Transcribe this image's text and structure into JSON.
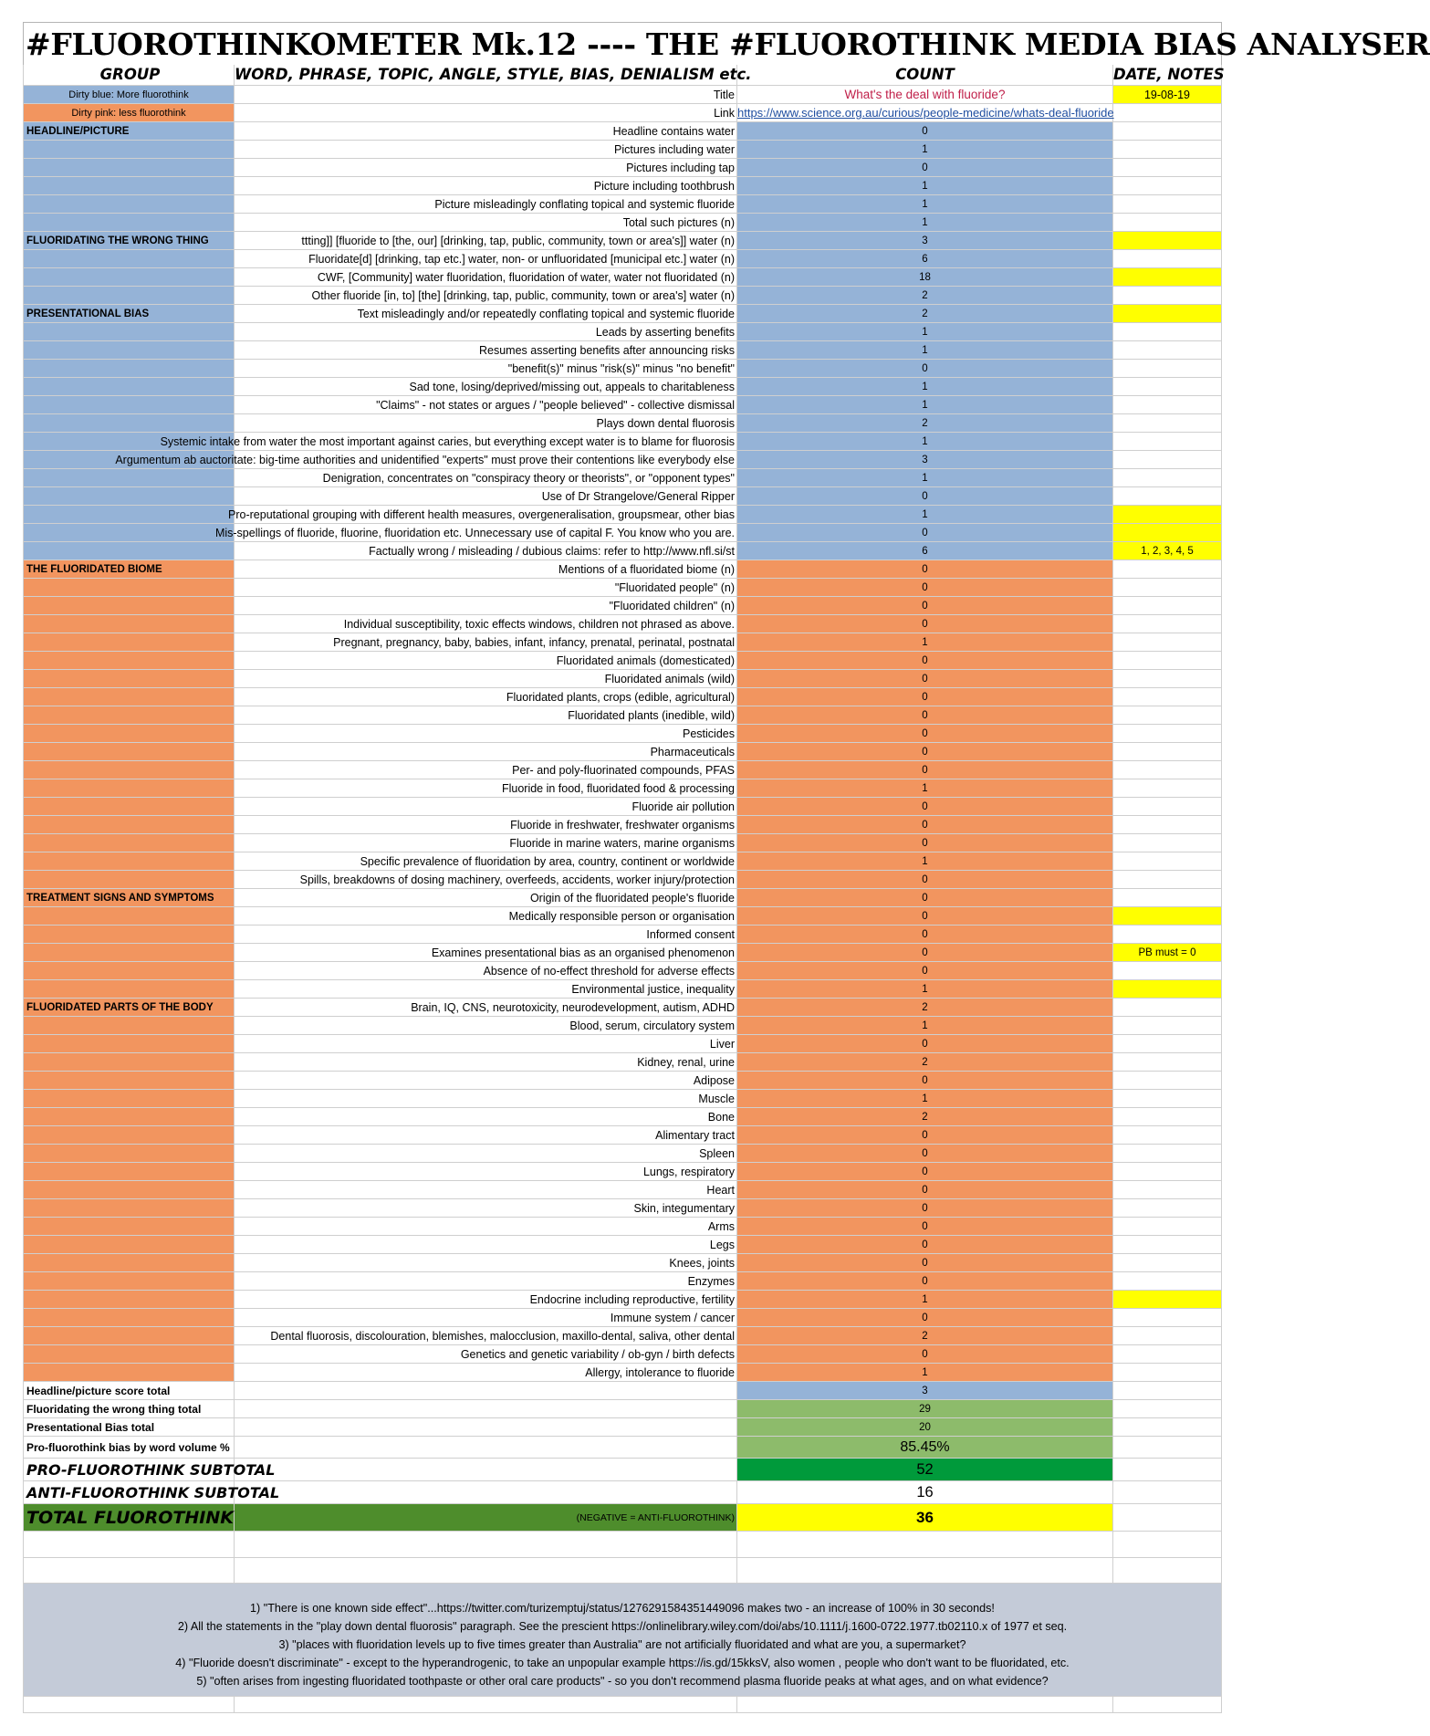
{
  "title": "#FLUOROTHINKOMETER Mk.12 ---- THE #FLUOROTHINK MEDIA BIAS ANALYSER",
  "headers": {
    "group": "GROUP",
    "word": "WORD, PHRASE, TOPIC, ANGLE, STYLE, BIAS, DENIALISM etc.",
    "count": "COUNT",
    "date": "DATE, NOTES"
  },
  "legend": {
    "blue": "Dirty blue: More fluorothink",
    "pink": "Dirty pink: less fluorothink"
  },
  "meta": {
    "title_label": "Title",
    "title_value": "What's the deal with fluoride?",
    "date_value": "19-08-19",
    "link_label": "Link",
    "link_value": "https://www.science.org.au/curious/people-medicine/whats-deal-fluoride"
  },
  "rows": [
    {
      "group": "HEADLINE/PICTURE",
      "label": "Headline contains water",
      "count": "0",
      "note": "",
      "color": "blue"
    },
    {
      "group": "",
      "label": "Pictures including water",
      "count": "1",
      "note": "",
      "color": "blue"
    },
    {
      "group": "",
      "label": "Pictures including tap",
      "count": "0",
      "note": "",
      "color": "blue"
    },
    {
      "group": "",
      "label": "Picture including toothbrush",
      "count": "1",
      "note": "",
      "color": "blue"
    },
    {
      "group": "",
      "label": "Picture misleadingly conflating topical and systemic fluoride",
      "count": "1",
      "note": "",
      "color": "blue"
    },
    {
      "group": "",
      "label": "Total such pictures (n)",
      "count": "1",
      "note": "",
      "color": "blue"
    },
    {
      "group": "FLUORIDATING THE WRONG THING",
      "label": "ttting]] [fluoride to [the, our] [drinking, tap, public, community, town or area's]] water (n)",
      "count": "3",
      "note": "",
      "color": "blue",
      "noteYellow": true
    },
    {
      "group": "",
      "label": "Fluoridate[d] [drinking, tap etc.] water, non- or unfluoridated [municipal etc.] water  (n)",
      "count": "6",
      "note": "",
      "color": "blue"
    },
    {
      "group": "",
      "label": "CWF, [Community] water fluoridation, fluoridation of water, water not fluoridated (n)",
      "count": "18",
      "note": "",
      "color": "blue",
      "noteYellow": true
    },
    {
      "group": "",
      "label": "Other fluoride [in, to] [the] [drinking, tap, public, community, town or area's] water (n)",
      "count": "2",
      "note": "",
      "color": "blue"
    },
    {
      "group": "PRESENTATIONAL BIAS",
      "label": "Text misleadingly and/or repeatedly conflating topical and systemic fluoride",
      "count": "2",
      "note": "",
      "color": "blue",
      "noteYellow": true
    },
    {
      "group": "",
      "label": "Leads by asserting benefits",
      "count": "1",
      "note": "",
      "color": "blue"
    },
    {
      "group": "",
      "label": "Resumes asserting benefits after announcing risks",
      "count": "1",
      "note": "",
      "color": "blue"
    },
    {
      "group": "",
      "label": "\"benefit(s)\" minus \"risk(s)\" minus \"no benefit\"",
      "count": "0",
      "note": "",
      "color": "blue"
    },
    {
      "group": "",
      "label": "Sad tone, losing/deprived/missing out, appeals to charitableness",
      "count": "1",
      "note": "",
      "color": "blue"
    },
    {
      "group": "",
      "label": "\"Claims\" - not states or argues / \"people believed\" - collective dismissal",
      "count": "1",
      "note": "",
      "color": "blue"
    },
    {
      "group": "",
      "label": "Plays down dental fluorosis",
      "count": "2",
      "note": "",
      "color": "blue"
    },
    {
      "group": "",
      "label": "Systemic intake from water the most important against caries, but everything except water is to blame for fluorosis",
      "count": "1",
      "note": "",
      "color": "blue",
      "wide": true
    },
    {
      "group": "",
      "label": "Argumentum ab auctoritate: big-time authorities and unidentified \"experts\" must prove their contentions like everybody else",
      "count": "3",
      "note": "",
      "color": "blue",
      "wide": true
    },
    {
      "group": "",
      "label": "Denigration, concentrates on \"conspiracy theory or theorists\", or \"opponent types\"",
      "count": "1",
      "note": "",
      "color": "blue"
    },
    {
      "group": "",
      "label": "Use of Dr Strangelove/General Ripper",
      "count": "0",
      "note": "",
      "color": "blue"
    },
    {
      "group": "",
      "label": "Pro-reputational grouping with different health measures, overgeneralisation, groupsmear, other bias",
      "count": "1",
      "note": "",
      "color": "blue",
      "wide": true,
      "noteYellow": true
    },
    {
      "group": "",
      "label": "Mis-spellings of fluoride, fluorine, fluoridation etc. Unnecessary use of capital F. You know who you are.",
      "count": "0",
      "note": "",
      "color": "blue",
      "wide": true,
      "noteYellow": true
    },
    {
      "group": "",
      "label": "Factually wrong / misleading / dubious claims: refer to http://www.nfl.si/st",
      "count": "6",
      "note": "1, 2, 3, 4, 5",
      "color": "blue",
      "noteYellow": true
    },
    {
      "group": "THE FLUORIDATED BIOME",
      "label": "Mentions of a fluoridated biome (n)",
      "count": "0",
      "note": "",
      "color": "orange"
    },
    {
      "group": "",
      "label": "\"Fluoridated people\" (n)",
      "count": "0",
      "note": "",
      "color": "orange"
    },
    {
      "group": "",
      "label": "\"Fluoridated children\" (n)",
      "count": "0",
      "note": "",
      "color": "orange"
    },
    {
      "group": "",
      "label": "Individual susceptibility, toxic effects windows, children not phrased as above.",
      "count": "0",
      "note": "",
      "color": "orange"
    },
    {
      "group": "",
      "label": "Pregnant, pregnancy, baby, babies, infant, infancy, prenatal, perinatal, postnatal",
      "count": "1",
      "note": "",
      "color": "orange"
    },
    {
      "group": "",
      "label": "Fluoridated animals (domesticated)",
      "count": "0",
      "note": "",
      "color": "orange"
    },
    {
      "group": "",
      "label": "Fluoridated animals (wild)",
      "count": "0",
      "note": "",
      "color": "orange"
    },
    {
      "group": "",
      "label": "Fluoridated plants, crops (edible, agricultural)",
      "count": "0",
      "note": "",
      "color": "orange"
    },
    {
      "group": "",
      "label": "Fluoridated plants (inedible, wild)",
      "count": "0",
      "note": "",
      "color": "orange"
    },
    {
      "group": "",
      "label": "Pesticides",
      "count": "0",
      "note": "",
      "color": "orange"
    },
    {
      "group": "",
      "label": "Pharmaceuticals",
      "count": "0",
      "note": "",
      "color": "orange"
    },
    {
      "group": "",
      "label": "Per- and poly-fluorinated compounds, PFAS",
      "count": "0",
      "note": "",
      "color": "orange"
    },
    {
      "group": "",
      "label": "Fluoride in food, fluoridated food & processing",
      "count": "1",
      "note": "",
      "color": "orange"
    },
    {
      "group": "",
      "label": "Fluoride air pollution",
      "count": "0",
      "note": "",
      "color": "orange"
    },
    {
      "group": "",
      "label": "Fluoride in freshwater, freshwater organisms",
      "count": "0",
      "note": "",
      "color": "orange"
    },
    {
      "group": "",
      "label": "Fluoride in marine waters, marine organisms",
      "count": "0",
      "note": "",
      "color": "orange"
    },
    {
      "group": "",
      "label": "Specific prevalence of fluoridation by area, country, continent or worldwide",
      "count": "1",
      "note": "",
      "color": "orange"
    },
    {
      "group": "",
      "label": "Spills, breakdowns of dosing machinery, overfeeds, accidents, worker injury/protection",
      "count": "0",
      "note": "",
      "color": "orange"
    },
    {
      "group": "TREATMENT SIGNS AND SYMPTOMS",
      "label": "Origin of the fluoridated people's fluoride",
      "count": "0",
      "note": "",
      "color": "orange"
    },
    {
      "group": "",
      "label": "Medically responsible person or organisation",
      "count": "0",
      "note": "",
      "color": "orange",
      "noteYellow": true
    },
    {
      "group": "",
      "label": "Informed consent",
      "count": "0",
      "note": "",
      "color": "orange"
    },
    {
      "group": "",
      "label": "Examines presentational bias as an organised phenomenon",
      "count": "0",
      "note": "PB must = 0",
      "color": "orange",
      "noteYellow": true
    },
    {
      "group": "",
      "label": "Absence of no-effect threshold for adverse effects",
      "count": "0",
      "note": "",
      "color": "orange"
    },
    {
      "group": "",
      "label": "Environmental justice, inequality",
      "count": "1",
      "note": "",
      "color": "orange",
      "noteYellow": true
    },
    {
      "group": "FLUORIDATED PARTS OF THE BODY",
      "label": "Brain, IQ, CNS, neurotoxicity, neurodevelopment, autism, ADHD",
      "count": "2",
      "note": "",
      "color": "orange"
    },
    {
      "group": "",
      "label": "Blood, serum, circulatory system",
      "count": "1",
      "note": "",
      "color": "orange"
    },
    {
      "group": "",
      "label": "Liver",
      "count": "0",
      "note": "",
      "color": "orange"
    },
    {
      "group": "",
      "label": "Kidney, renal, urine",
      "count": "2",
      "note": "",
      "color": "orange"
    },
    {
      "group": "",
      "label": "Adipose",
      "count": "0",
      "note": "",
      "color": "orange"
    },
    {
      "group": "",
      "label": "Muscle",
      "count": "1",
      "note": "",
      "color": "orange"
    },
    {
      "group": "",
      "label": "Bone",
      "count": "2",
      "note": "",
      "color": "orange"
    },
    {
      "group": "",
      "label": "Alimentary tract",
      "count": "0",
      "note": "",
      "color": "orange"
    },
    {
      "group": "",
      "label": "Spleen",
      "count": "0",
      "note": "",
      "color": "orange"
    },
    {
      "group": "",
      "label": "Lungs, respiratory",
      "count": "0",
      "note": "",
      "color": "orange"
    },
    {
      "group": "",
      "label": "Heart",
      "count": "0",
      "note": "",
      "color": "orange"
    },
    {
      "group": "",
      "label": "Skin, integumentary",
      "count": "0",
      "note": "",
      "color": "orange"
    },
    {
      "group": "",
      "label": "Arms",
      "count": "0",
      "note": "",
      "color": "orange"
    },
    {
      "group": "",
      "label": "Legs",
      "count": "0",
      "note": "",
      "color": "orange"
    },
    {
      "group": "",
      "label": "Knees, joints",
      "count": "0",
      "note": "",
      "color": "orange"
    },
    {
      "group": "",
      "label": "Enzymes",
      "count": "0",
      "note": "",
      "color": "orange"
    },
    {
      "group": "",
      "label": "Endocrine including reproductive, fertility",
      "count": "1",
      "note": "",
      "color": "orange",
      "noteYellow": true
    },
    {
      "group": "",
      "label": "Immune system / cancer",
      "count": "0",
      "note": "",
      "color": "orange"
    },
    {
      "group": "",
      "label": "Dental fluorosis, discolouration, blemishes, malocclusion, maxillo-dental, saliva, other dental",
      "count": "2",
      "note": "",
      "color": "orange",
      "wide": true
    },
    {
      "group": "",
      "label": "Genetics and genetic variability / ob-gyn / birth defects",
      "count": "0",
      "note": "",
      "color": "orange"
    },
    {
      "group": "",
      "label": "Allergy, intolerance to fluoride",
      "count": "1",
      "note": "",
      "color": "orange"
    }
  ],
  "summary": {
    "headline_total_label": "Headline/picture score total",
    "headline_total": "3",
    "wrong_thing_label": "Fluoridating the wrong thing total",
    "wrong_thing_total": "29",
    "pb_label": "Presentational Bias total",
    "pb_total": "20",
    "pct_label": "Pro-fluorothink bias by word volume %",
    "pct_value": "85.45%",
    "pro_label": "PRO-FLUOROTHINK SUBTOTAL",
    "pro_value": "52",
    "anti_label": "ANTI-FLUOROTHINK SUBTOTAL",
    "anti_value": "16",
    "total_label": "TOTAL FLUOROTHINK",
    "total_note": "(NEGATIVE = ANTI-FLUOROTHINK)",
    "total_value": "36"
  },
  "notes": [
    "1) \"There is one known side effect\"...https://twitter.com/turizemptuj/status/1276291584351449096 makes two - an increase of 100% in 30 seconds!",
    "2) All the statements in the \"play down dental fluorosis\" paragraph. See the prescient https://onlinelibrary.wiley.com/doi/abs/10.1111/j.1600-0722.1977.tb02110.x of 1977 et seq.",
    "3) \"places with fluoridation levels up to five times greater than Australia\" are not artificially fluoridated and what are you, a supermarket?",
    "4) \"Fluoride doesn't discriminate\" - except to the hyperandrogenic, to take an unpopular example https://is.gd/15kksV, also women , people who don't want to be fluoridated, etc.",
    "5) \"often arises from ingesting fluoridated toothpaste or other oral care products\" - so you don't recommend plasma fluoride peaks at what ages, and on what evidence?"
  ],
  "colors": {
    "blue": "#95b3d7",
    "orange": "#f2955f",
    "yellow": "#ffff00",
    "green": "#8dbb6b",
    "dark_green": "#009a3b",
    "total_green": "#4e8d2c",
    "notes_grey": "#c4cbd8"
  }
}
